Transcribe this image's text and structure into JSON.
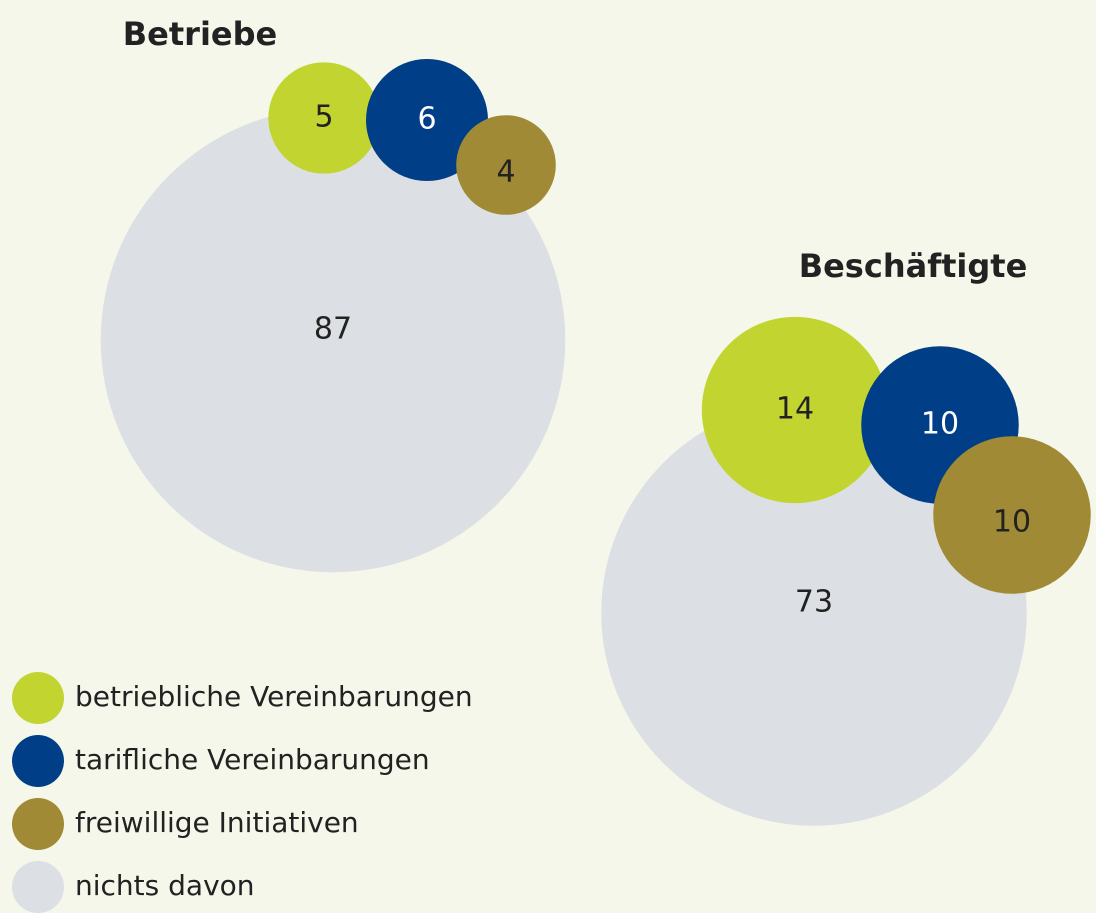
{
  "chart_data": {
    "type": "bubble",
    "categories": [
      "betriebliche Vereinbarungen",
      "tarifliche Vereinbarungen",
      "freiwillige Initiativen",
      "nichts davon"
    ],
    "colors": [
      "#c1d430",
      "#003f87",
      "#a08a35",
      "#dcdfe3"
    ],
    "series": [
      {
        "name": "Betriebe",
        "values": [
          5,
          6,
          4,
          87
        ]
      },
      {
        "name": "Beschäftigte",
        "values": [
          14,
          10,
          10,
          73
        ]
      }
    ]
  }
}
